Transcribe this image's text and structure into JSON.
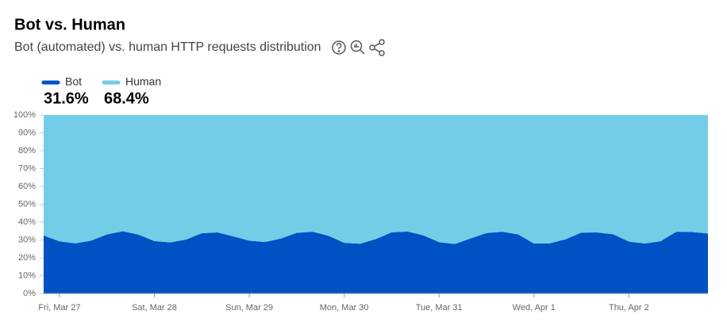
{
  "chart_data": {
    "type": "stacked_area_percent",
    "title": "Bot vs. Human",
    "subtitle": "Bot (automated) vs. human HTTP requests distribution",
    "categories": [
      null,
      "Fri, Mar 27",
      null,
      null,
      null,
      null,
      null,
      "Sat, Mar 28",
      null,
      null,
      null,
      null,
      null,
      "Sun, Mar 29",
      null,
      null,
      null,
      null,
      null,
      "Mon, Mar 30",
      null,
      null,
      null,
      null,
      null,
      "Tue, Mar 31",
      null,
      null,
      null,
      null,
      null,
      "Wed, Apr 1",
      null,
      null,
      null,
      null,
      null,
      "Thu, Apr 2",
      null,
      null,
      null,
      null,
      null
    ],
    "series": [
      {
        "name": "Bot",
        "color": "#0051c3",
        "summary": {
          "value": 31.6,
          "label": "31.6%"
        },
        "values": [
          32.5,
          29.2,
          28.1,
          29.6,
          33.1,
          34.9,
          33.0,
          29.4,
          28.6,
          30.2,
          33.8,
          34.2,
          32.0,
          29.6,
          28.9,
          30.8,
          34.0,
          34.6,
          32.4,
          28.4,
          27.9,
          30.5,
          34.3,
          34.7,
          32.6,
          28.8,
          27.7,
          30.9,
          33.9,
          34.6,
          33.1,
          28.0,
          28.1,
          30.4,
          34.1,
          34.2,
          33.2,
          29.1,
          28.0,
          29.3,
          34.6,
          34.5,
          33.6
        ]
      },
      {
        "name": "Human",
        "color": "#73cde6",
        "summary": {
          "value": 68.4,
          "label": "68.4%"
        },
        "values": [
          67.5,
          70.8,
          71.9,
          70.4,
          66.9,
          65.1,
          67.0,
          70.6,
          71.4,
          69.8,
          66.2,
          65.8,
          68.0,
          70.4,
          71.1,
          69.2,
          66.0,
          65.4,
          67.6,
          71.6,
          72.1,
          69.5,
          65.7,
          65.3,
          67.4,
          71.2,
          72.3,
          69.1,
          66.1,
          65.4,
          66.9,
          72.0,
          71.9,
          69.6,
          65.9,
          65.8,
          66.8,
          70.9,
          72.0,
          70.7,
          65.4,
          65.5,
          66.4
        ]
      }
    ],
    "ylim": [
      0,
      100
    ],
    "yticks": [
      {
        "value": 0,
        "label": "0%"
      },
      {
        "value": 10,
        "label": "10%"
      },
      {
        "value": 20,
        "label": "20%"
      },
      {
        "value": 30,
        "label": "30%"
      },
      {
        "value": 40,
        "label": "40%"
      },
      {
        "value": 50,
        "label": "50%"
      },
      {
        "value": 60,
        "label": "60%"
      },
      {
        "value": 70,
        "label": "70%"
      },
      {
        "value": 80,
        "label": "80%"
      },
      {
        "value": 90,
        "label": "90%"
      },
      {
        "value": 100,
        "label": "100%"
      }
    ]
  }
}
